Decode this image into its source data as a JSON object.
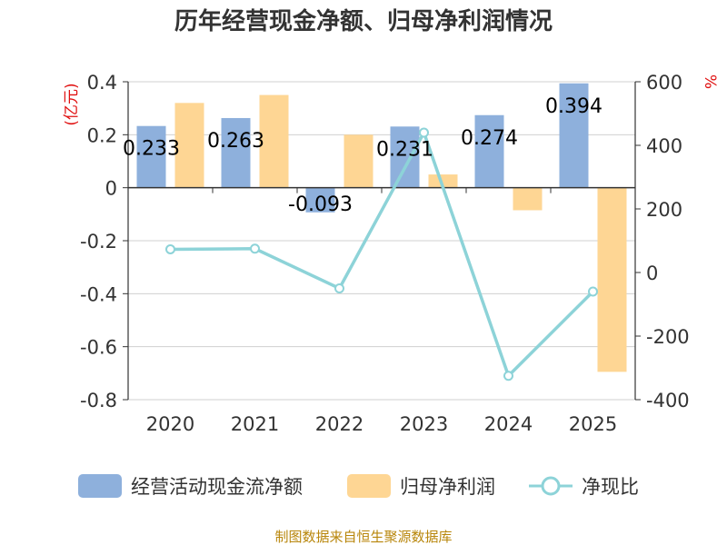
{
  "title": "历年经营现金净额、归母净利润情况",
  "source": "制图数据来自恒生聚源数据库",
  "colors": {
    "cash": "#8eb0dc",
    "profit": "#fed694",
    "ratio": "#8dd3d8",
    "axis": "#333333",
    "grid": "#d0d0d0",
    "unit": "#e01010"
  },
  "chart_data": {
    "type": "bar",
    "categories": [
      "2020",
      "2021",
      "2022",
      "2023",
      "2024",
      "2025"
    ],
    "left_axis": {
      "unit": "(亿元)",
      "ylim": [
        -0.8,
        0.4
      ],
      "ticks": [
        "0.4",
        "0.2",
        "0",
        "-0.2",
        "-0.4",
        "-0.6",
        "-0.8"
      ]
    },
    "right_axis": {
      "unit": "%",
      "ylim": [
        -400,
        600
      ],
      "ticks": [
        "600",
        "400",
        "200",
        "0",
        "-200",
        "-400"
      ]
    },
    "series": [
      {
        "name": "经营活动现金流净额",
        "type": "bar",
        "axis": "left",
        "values": [
          0.233,
          0.263,
          -0.093,
          0.231,
          0.274,
          0.394
        ],
        "labels": [
          "0.233",
          "0.263",
          "-0.093",
          "0.231",
          "0.274",
          "0.394"
        ]
      },
      {
        "name": "归母净利润",
        "type": "bar",
        "axis": "left",
        "values": [
          0.32,
          0.35,
          0.2,
          0.05,
          -0.085,
          -0.695
        ]
      },
      {
        "name": "净现比",
        "type": "line",
        "axis": "right",
        "values": [
          73,
          75,
          -50,
          440,
          -325,
          -60
        ]
      }
    ],
    "legend": [
      "经营活动现金流净额",
      "归母净利润",
      "净现比"
    ],
    "legend_position": "bottom",
    "grid": true
  }
}
